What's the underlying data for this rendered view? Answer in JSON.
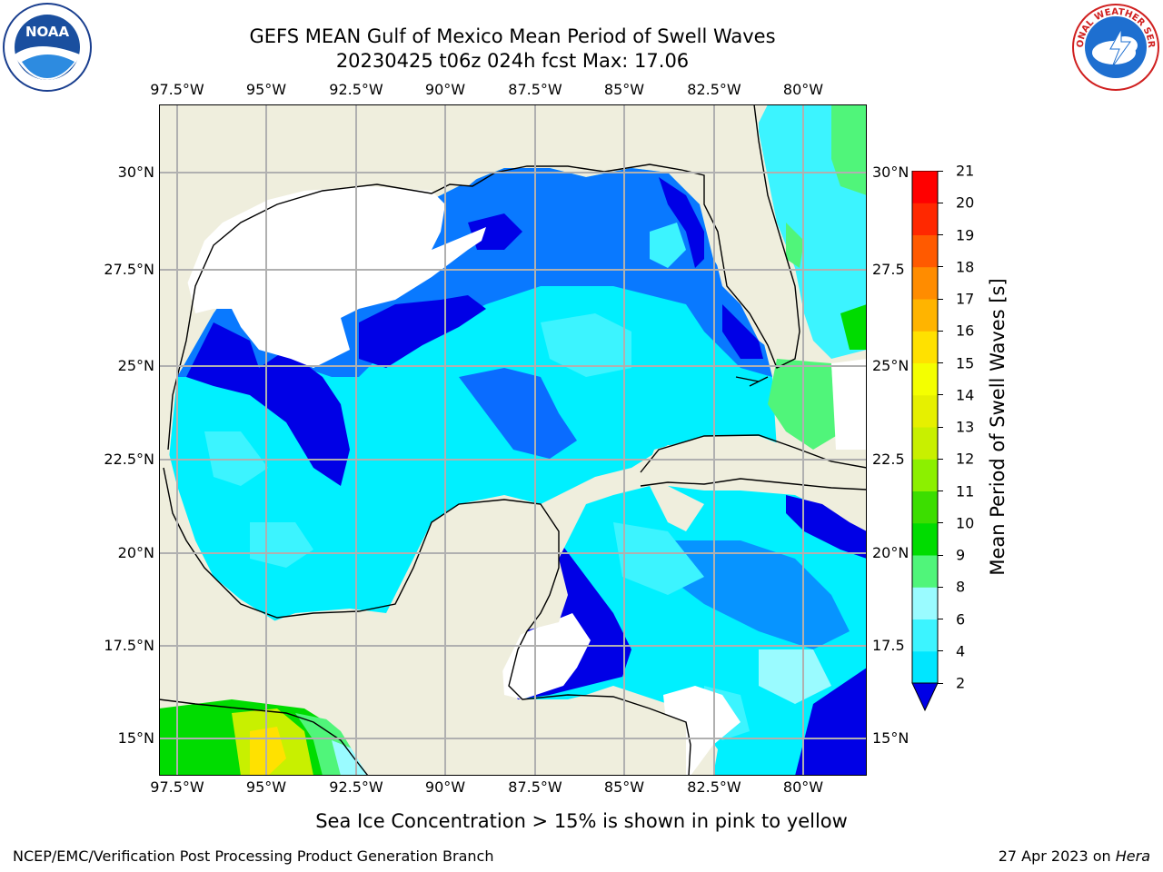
{
  "title": {
    "line1": "GEFS MEAN Gulf of Mexico Mean Period of Swell Waves",
    "line2": "20230425 t06z 024h fcst   Max: 17.06"
  },
  "logos": {
    "left": "NOAA",
    "right": "NATIONAL WEATHER SERVICE"
  },
  "map": {
    "lon_ticks": [
      "97.5°W",
      "95°W",
      "92.5°W",
      "90°W",
      "87.5°W",
      "85°W",
      "82.5°W",
      "80°W"
    ],
    "lat_ticks_left": [
      "30°N",
      "27.5°N",
      "25°N",
      "22.5°N",
      "20°N",
      "17.5°N",
      "15°N"
    ],
    "lat_ticks_right": [
      "30°N",
      "27.5",
      "25°N",
      "22.5",
      "20°N",
      "17.5",
      "15°N"
    ],
    "colors": {
      "land": "#efeedd",
      "no_data": "#ffffff",
      "grid": "#b0b0b0",
      "coast": "#000000"
    }
  },
  "colorbar": {
    "label": "Mean Period of Swell Waves [s]",
    "ticks": [
      "2",
      "4",
      "6",
      "8",
      "9",
      "10",
      "11",
      "12",
      "13",
      "14",
      "15",
      "16",
      "17",
      "18",
      "19",
      "20",
      "21"
    ],
    "colors": [
      "#0a6cff",
      "#00e6ff",
      "#3cf4ff",
      "#9afbff",
      "#50f57a",
      "#00dc00",
      "#3cde00",
      "#8cf000",
      "#c8f000",
      "#e6f000",
      "#f4ff00",
      "#ffe100",
      "#ffb400",
      "#ff8c00",
      "#ff5a00",
      "#ff2800",
      "#ff0000"
    ],
    "extend_color": "#0000e6"
  },
  "footer": {
    "note": "Sea Ice Concentration > 15% is shown in pink to yellow",
    "credit": "NCEP/EMC/Verification Post Processing Product Generation Branch",
    "date": "27 Apr 2023 on ",
    "machine": "Hera"
  }
}
